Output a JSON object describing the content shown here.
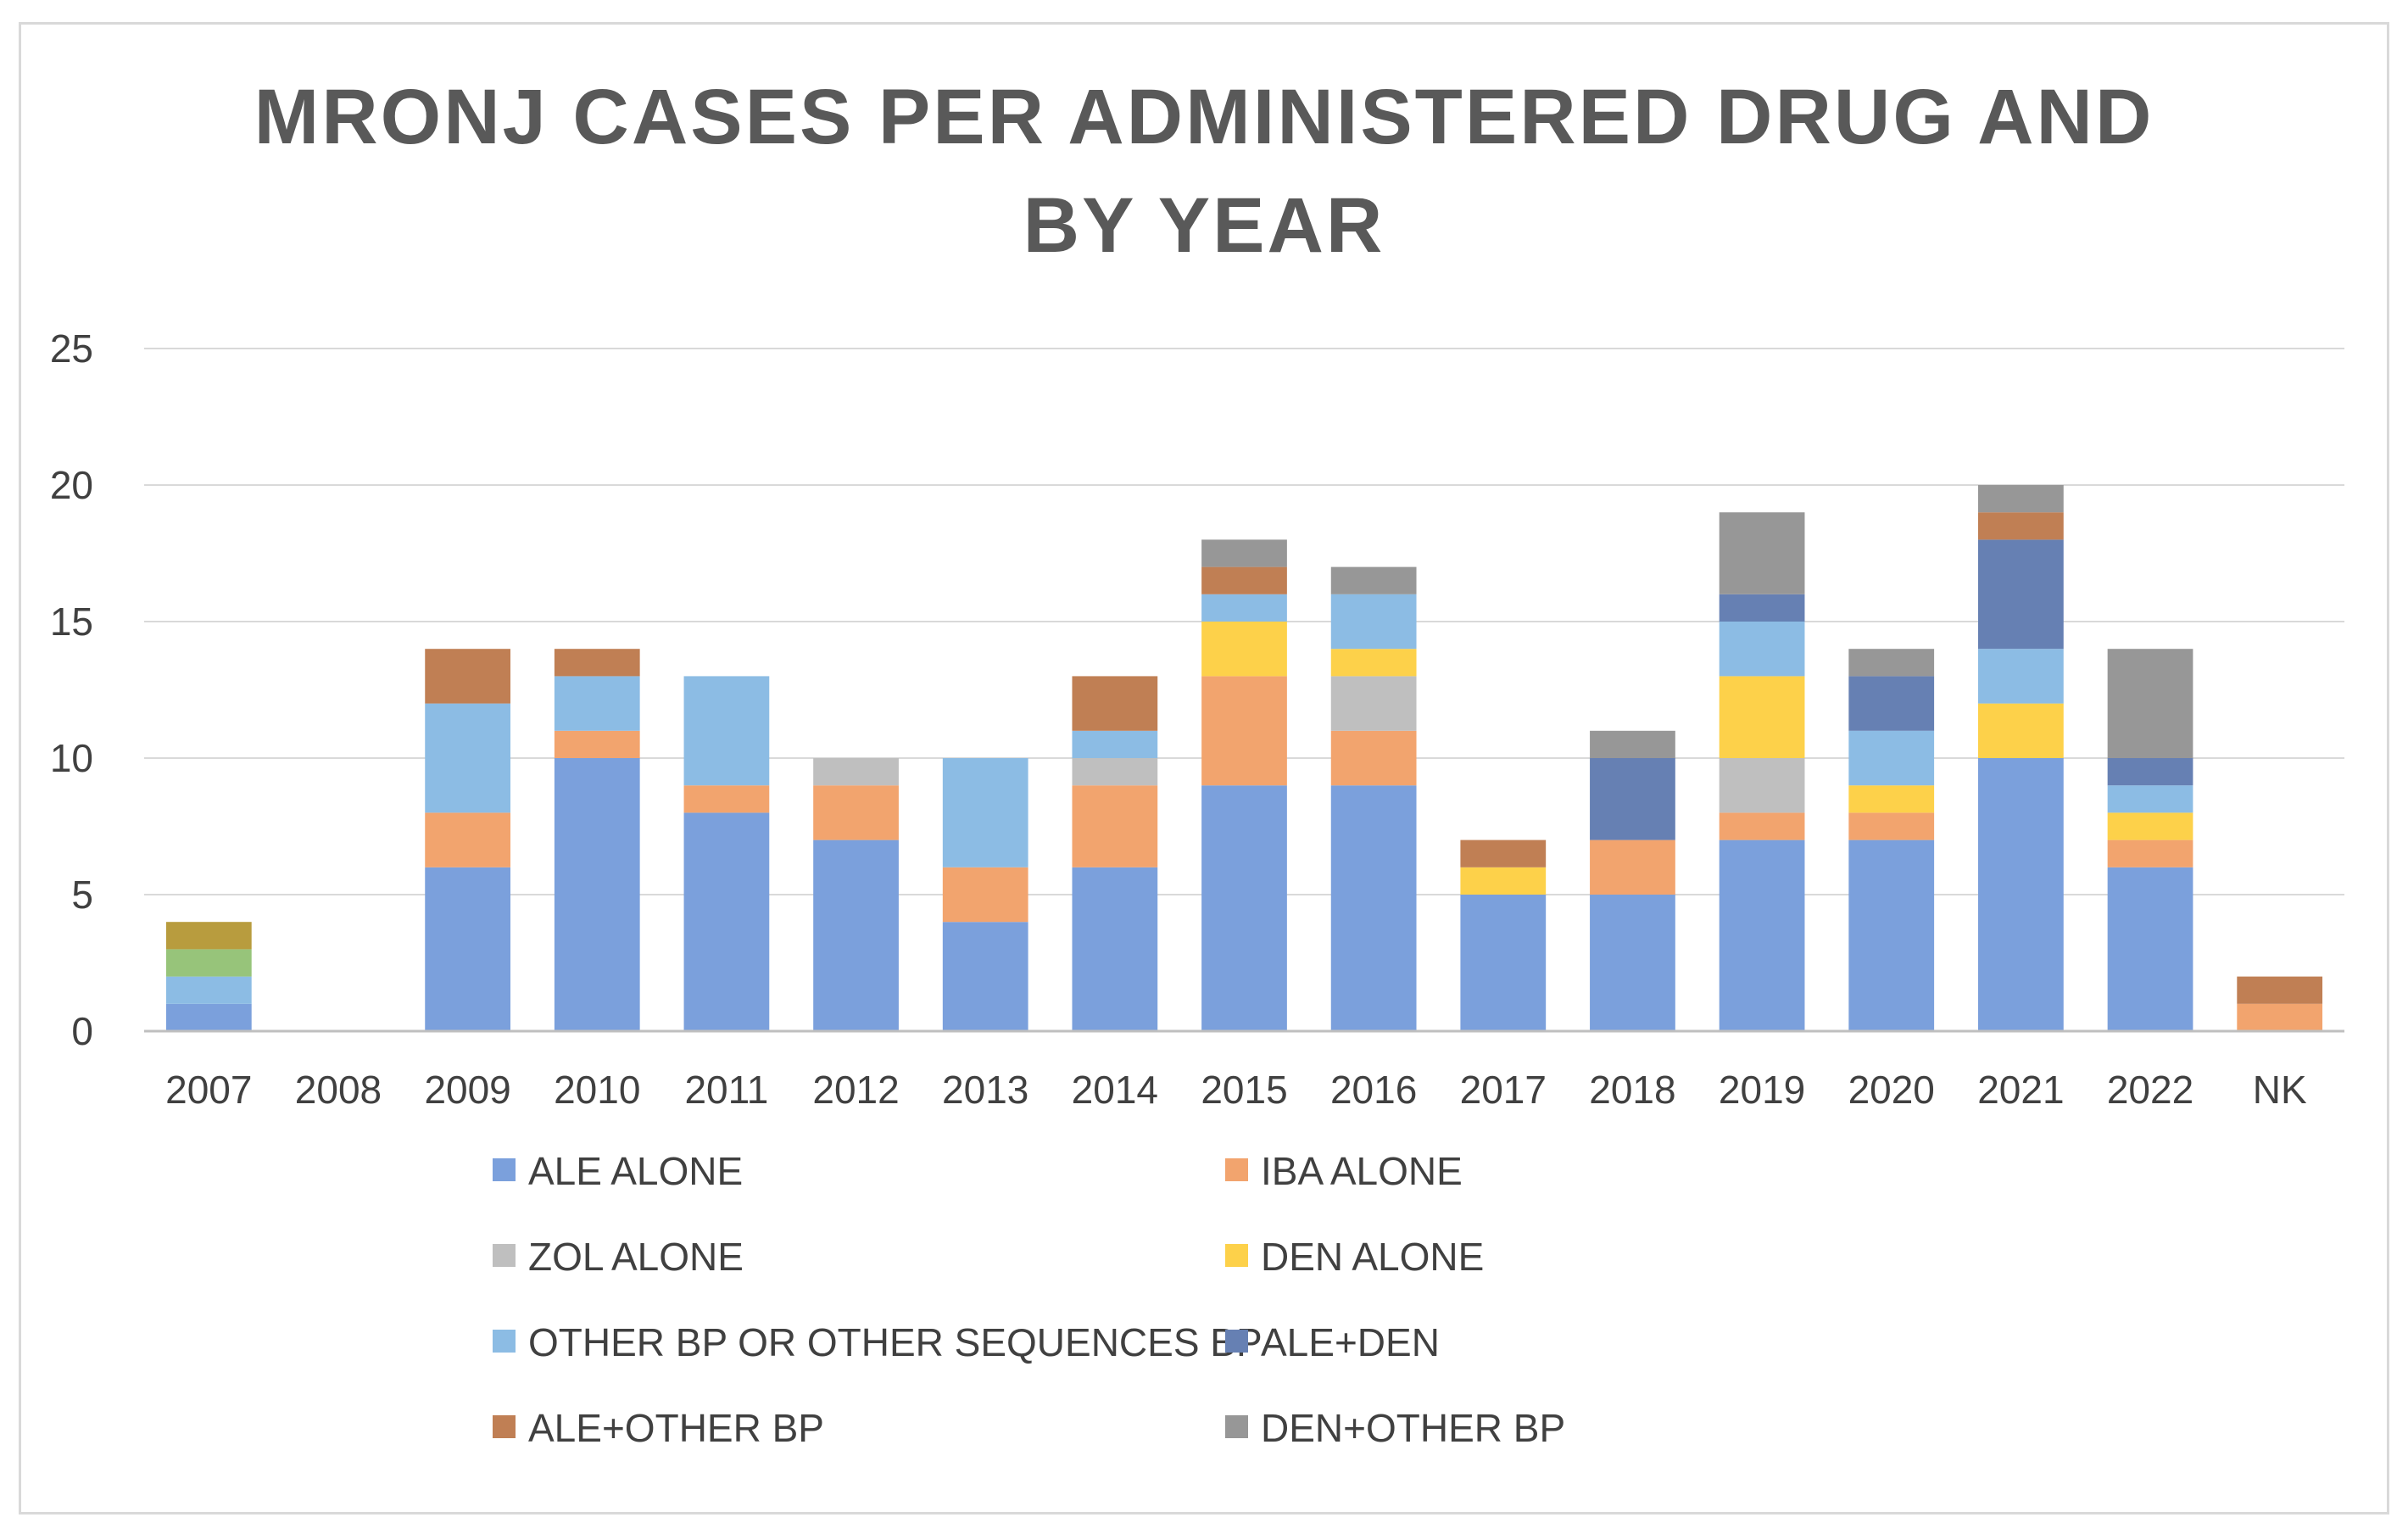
{
  "chart_data": {
    "type": "bar",
    "stacked": true,
    "title": "MRONJ CASES PER ADMINISTERED DRUG AND BY YEAR",
    "title_lines": [
      "MRONJ CASES PER ADMINISTERED DRUG AND",
      "BY YEAR"
    ],
    "xlabel": "",
    "ylabel": "",
    "ylim": [
      0,
      25
    ],
    "yticks": [
      0,
      5,
      10,
      15,
      20,
      25
    ],
    "grid": true,
    "legend_position": "bottom",
    "categories": [
      "2007",
      "2008",
      "2009",
      "2010",
      "2011",
      "2012",
      "2013",
      "2014",
      "2015",
      "2016",
      "2017",
      "2018",
      "2019",
      "2020",
      "2021",
      "2022",
      "NK"
    ],
    "series": [
      {
        "name": "ALE ALONE",
        "color": "#7ba0dc",
        "values": [
          1,
          0,
          6,
          10,
          8,
          7,
          4,
          6,
          9,
          9,
          5,
          5,
          7,
          7,
          10,
          6,
          0
        ]
      },
      {
        "name": "IBA ALONE",
        "color": "#f2a46e",
        "values": [
          0,
          0,
          2,
          1,
          1,
          2,
          2,
          3,
          4,
          2,
          0,
          2,
          1,
          1,
          0,
          1,
          1
        ]
      },
      {
        "name": "ZOL ALONE",
        "color": "#bfbfbf",
        "values": [
          0,
          0,
          0,
          0,
          0,
          1,
          0,
          1,
          0,
          2,
          0,
          0,
          2,
          0,
          0,
          0,
          0
        ]
      },
      {
        "name": "DEN ALONE",
        "color": "#fdd14a",
        "values": [
          0,
          0,
          0,
          0,
          0,
          0,
          0,
          0,
          2,
          1,
          1,
          0,
          3,
          1,
          2,
          1,
          0
        ]
      },
      {
        "name": "OTHER BP OR OTHER SEQUENCES BP",
        "color": "#8cbce4",
        "values": [
          1,
          0,
          4,
          2,
          4,
          0,
          4,
          1,
          1,
          2,
          0,
          0,
          2,
          2,
          2,
          1,
          0
        ]
      },
      {
        "name": "ALE+DEN",
        "color": "#6680b3",
        "values": [
          0,
          0,
          0,
          0,
          0,
          0,
          0,
          0,
          0,
          0,
          0,
          3,
          1,
          2,
          4,
          1,
          0
        ]
      },
      {
        "name": "ALE+OTHER BP",
        "color": "#c07f54",
        "values": [
          0,
          0,
          2,
          1,
          0,
          0,
          0,
          2,
          1,
          0,
          1,
          0,
          0,
          0,
          1,
          0,
          1
        ]
      },
      {
        "name": "DEN+OTHER BP",
        "color": "#979797",
        "values": [
          0,
          0,
          0,
          0,
          0,
          0,
          0,
          0,
          1,
          1,
          0,
          1,
          3,
          1,
          1,
          4,
          0
        ]
      },
      {
        "name": "",
        "color": "#97c47a",
        "values": [
          1,
          0,
          0,
          0,
          0,
          0,
          0,
          0,
          0,
          0,
          0,
          0,
          0,
          0,
          0,
          0,
          0
        ]
      },
      {
        "name": "",
        "color": "#b89c3e",
        "values": [
          1,
          0,
          0,
          0,
          0,
          0,
          0,
          0,
          0,
          0,
          0,
          0,
          0,
          0,
          0,
          0,
          0
        ]
      }
    ]
  }
}
